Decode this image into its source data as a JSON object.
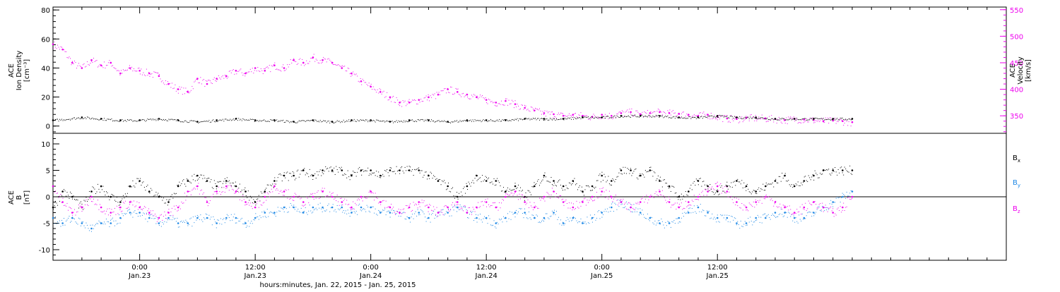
{
  "colors": {
    "density": "#000000",
    "velocity": "#ee00ee",
    "bx": "#000000",
    "by": "#1e88e5",
    "bz": "#ee00ee",
    "axis": "#000000"
  },
  "chart_data": [
    {
      "type": "scatter",
      "title": "",
      "panel": "top",
      "x_range_hours": [
        -9,
        90
      ],
      "left_axis": {
        "label_lines": [
          "ACE",
          "Ion Density",
          "[cm⁻³]"
        ],
        "ylim": [
          -5,
          82
        ],
        "ticks": [
          0,
          20,
          40,
          60,
          80
        ],
        "tick_labels": [
          "0",
          "20",
          "40",
          "60",
          "80"
        ]
      },
      "right_axis": {
        "label_lines": [
          "ACE",
          "Velocity",
          "[km/s]"
        ],
        "ylim": [
          317,
          555
        ],
        "ticks": [
          350,
          400,
          450,
          500,
          550
        ],
        "tick_labels": [
          "350",
          "400",
          "450",
          "500",
          "550"
        ]
      },
      "series": [
        {
          "name": "",
          "axis": "left",
          "color": "#000000",
          "x": [
            -9,
            -6,
            -4,
            -2,
            0,
            2,
            4,
            6,
            8,
            10,
            12,
            14,
            16,
            18,
            20,
            22,
            24,
            26,
            28,
            30,
            32,
            34,
            36,
            38,
            40,
            42,
            44,
            46,
            48,
            50,
            52,
            54,
            56,
            58,
            60,
            62,
            64,
            66,
            68,
            70,
            72,
            74
          ],
          "values": [
            4,
            6,
            5,
            4,
            4,
            5,
            4,
            3,
            4,
            5,
            4,
            4,
            3,
            4,
            3,
            4,
            4,
            3,
            4,
            4,
            3,
            4,
            4,
            4,
            5,
            5,
            5,
            6,
            6,
            7,
            7,
            7,
            6,
            6,
            7,
            6,
            6,
            5,
            5,
            5,
            5,
            5
          ]
        },
        {
          "name": "",
          "axis": "right",
          "color": "#ee00ee",
          "x": [
            -9,
            -8,
            -7,
            -6,
            -5,
            -4,
            -3,
            -2,
            -1,
            0,
            1,
            2,
            3,
            4,
            5,
            6,
            7,
            8,
            9,
            10,
            11,
            12,
            13,
            14,
            15,
            16,
            17,
            18,
            19,
            20,
            21,
            22,
            23,
            24,
            25,
            26,
            27,
            28,
            29,
            30,
            31,
            32,
            33,
            34,
            35,
            36,
            37,
            38,
            39,
            40,
            41,
            42,
            43,
            44,
            45,
            46,
            47,
            48,
            49,
            50,
            51,
            52,
            53,
            54,
            55,
            56,
            57,
            58,
            59,
            60,
            61,
            62,
            63,
            64,
            65,
            66,
            67,
            68,
            69,
            70,
            71,
            72,
            73,
            74
          ],
          "values": [
            485,
            475,
            450,
            440,
            455,
            445,
            450,
            430,
            440,
            435,
            430,
            425,
            410,
            400,
            395,
            420,
            410,
            420,
            425,
            435,
            430,
            440,
            435,
            445,
            440,
            455,
            450,
            460,
            455,
            450,
            440,
            430,
            415,
            405,
            395,
            385,
            375,
            375,
            380,
            385,
            390,
            400,
            395,
            390,
            385,
            380,
            375,
            378,
            372,
            365,
            360,
            355,
            353,
            350,
            352,
            350,
            348,
            352,
            350,
            355,
            357,
            353,
            355,
            357,
            355,
            354,
            352,
            350,
            352,
            348,
            345,
            344,
            346,
            346,
            345,
            344,
            342,
            344,
            343,
            342,
            340,
            341,
            340,
            338
          ]
        }
      ]
    },
    {
      "type": "scatter",
      "title": "",
      "panel": "bottom",
      "x_range_hours": [
        -9,
        90
      ],
      "xlabel": "hours:minutes, Jan. 22, 2015 - Jan. 25, 2015",
      "x_ticks_hours": [
        0,
        12,
        24,
        36,
        48,
        60
      ],
      "x_tick_labels": [
        [
          "0:00",
          "Jan.23"
        ],
        [
          "12:00",
          "Jan.23"
        ],
        [
          "0:00",
          "Jan.24"
        ],
        [
          "12:00",
          "Jan.24"
        ],
        [
          "0:00",
          "Jan.25"
        ],
        [
          "12:00",
          "Jan.25"
        ]
      ],
      "left_axis": {
        "label_lines": [
          "ACE",
          "B",
          "[nT]"
        ],
        "ylim": [
          -12,
          12
        ],
        "ticks": [
          -10,
          -5,
          0,
          5,
          10
        ],
        "tick_labels": [
          "-10",
          "-5",
          "0",
          "5",
          "10"
        ]
      },
      "zero_line": 0,
      "series": [
        {
          "name": "B",
          "subscript": "x",
          "color": "#000000",
          "x": [
            -9,
            -8,
            -7,
            -6,
            -5,
            -4,
            -3,
            -2,
            -1,
            0,
            1,
            2,
            3,
            4,
            5,
            6,
            7,
            8,
            9,
            10,
            11,
            12,
            13,
            14,
            15,
            16,
            17,
            18,
            19,
            20,
            21,
            22,
            23,
            24,
            25,
            26,
            27,
            28,
            29,
            30,
            31,
            32,
            33,
            34,
            35,
            36,
            37,
            38,
            39,
            40,
            41,
            42,
            43,
            44,
            45,
            46,
            47,
            48,
            49,
            50,
            51,
            52,
            53,
            54,
            55,
            56,
            57,
            58,
            59,
            60,
            61,
            62,
            63,
            64,
            65,
            66,
            67,
            68,
            69,
            70,
            71,
            72,
            73,
            74
          ],
          "values": [
            -2,
            1,
            0,
            -2,
            1,
            2,
            0,
            -1,
            2,
            3,
            1,
            0,
            -1,
            2,
            3,
            4,
            3,
            2,
            3,
            2,
            1,
            -1,
            1,
            3,
            4,
            4,
            5,
            4,
            5,
            5,
            5,
            4,
            5,
            5,
            4,
            5,
            5,
            5,
            5,
            4,
            3,
            2,
            0,
            2,
            4,
            3,
            3,
            1,
            2,
            0,
            2,
            4,
            3,
            2,
            3,
            1,
            2,
            4,
            3,
            5,
            5,
            4,
            5,
            3,
            2,
            0,
            1,
            3,
            2,
            1,
            2,
            3,
            2,
            1,
            2,
            3,
            4,
            2,
            3,
            4,
            5,
            5,
            5,
            5
          ]
        },
        {
          "name": "B",
          "subscript": "y",
          "color": "#1e88e5",
          "x": [
            -9,
            -8,
            -7,
            -6,
            -5,
            -4,
            -3,
            -2,
            -1,
            0,
            1,
            2,
            3,
            4,
            5,
            6,
            7,
            8,
            9,
            10,
            11,
            12,
            13,
            14,
            15,
            16,
            17,
            18,
            19,
            20,
            21,
            22,
            23,
            24,
            25,
            26,
            27,
            28,
            29,
            30,
            31,
            32,
            33,
            34,
            35,
            36,
            37,
            38,
            39,
            40,
            41,
            42,
            43,
            44,
            45,
            46,
            47,
            48,
            49,
            50,
            51,
            52,
            53,
            54,
            55,
            56,
            57,
            58,
            59,
            60,
            61,
            62,
            63,
            64,
            65,
            66,
            67,
            68,
            69,
            70,
            71,
            72,
            73,
            74
          ],
          "values": [
            -4,
            -5,
            -4,
            -5,
            -6,
            -5,
            -5,
            -4,
            -3,
            -3,
            -4,
            -5,
            -4,
            -5,
            -5,
            -4,
            -4,
            -5,
            -4,
            -4,
            -5,
            -4,
            -3,
            -3,
            -2,
            -2,
            -3,
            -2,
            -2,
            -2,
            -2,
            -3,
            -2,
            -2,
            -3,
            -3,
            -3,
            -4,
            -3,
            -4,
            -3,
            -3,
            -2,
            -3,
            -4,
            -4,
            -5,
            -4,
            -3,
            -3,
            -4,
            -4,
            -3,
            -5,
            -4,
            -5,
            -4,
            -3,
            -2,
            -1,
            -2,
            -3,
            -4,
            -5,
            -5,
            -4,
            -3,
            -2,
            -3,
            -4,
            -4,
            -5,
            -5,
            -4,
            -4,
            -3,
            -3,
            -4,
            -4,
            -3,
            -2,
            -1,
            0,
            1
          ]
        },
        {
          "name": "B",
          "subscript": "z",
          "color": "#ee00ee",
          "x": [
            -9,
            -8,
            -7,
            -6,
            -5,
            -4,
            -3,
            -2,
            -1,
            0,
            1,
            2,
            3,
            4,
            5,
            6,
            7,
            8,
            9,
            10,
            11,
            12,
            13,
            14,
            15,
            16,
            17,
            18,
            19,
            20,
            21,
            22,
            23,
            24,
            25,
            26,
            27,
            28,
            29,
            30,
            31,
            32,
            33,
            34,
            35,
            36,
            37,
            38,
            39,
            40,
            41,
            42,
            43,
            44,
            45,
            46,
            47,
            48,
            49,
            50,
            51,
            52,
            53,
            54,
            55,
            56,
            57,
            58,
            59,
            60,
            61,
            62,
            63,
            64,
            65,
            66,
            67,
            68,
            69,
            70,
            71,
            72,
            73,
            74
          ],
          "values": [
            2,
            -1,
            -3,
            -2,
            0,
            -2,
            -3,
            -2,
            -1,
            -2,
            -3,
            -4,
            -3,
            -2,
            1,
            2,
            -1,
            1,
            2,
            1,
            -1,
            -2,
            0,
            2,
            1,
            0,
            -1,
            0,
            1,
            0,
            -1,
            -2,
            0,
            1,
            -1,
            -2,
            -3,
            -2,
            -1,
            -2,
            -3,
            -2,
            -1,
            -3,
            -2,
            -1,
            -2,
            0,
            1,
            -1,
            -2,
            0,
            1,
            -1,
            -2,
            -1,
            0,
            1,
            0,
            -1,
            -2,
            -1,
            0,
            1,
            -1,
            -2,
            -1,
            0,
            1,
            2,
            1,
            -1,
            -2,
            -1,
            0,
            -1,
            -2,
            -3,
            -2,
            -1,
            -2,
            -3,
            -2,
            0
          ]
        }
      ]
    }
  ]
}
